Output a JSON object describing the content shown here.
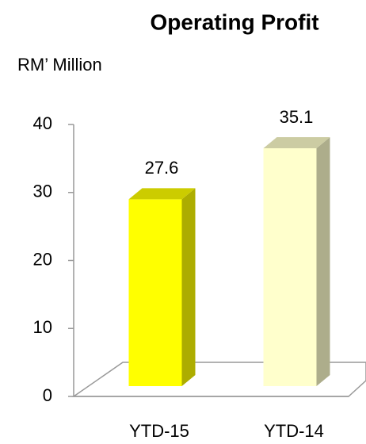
{
  "chart_data": {
    "type": "bar3d",
    "title": "Operating Profit",
    "y_label": "RM’ Million",
    "categories": [
      "YTD-15",
      "YTD-14"
    ],
    "values": [
      27.6,
      35.1
    ],
    "colors": [
      "#ffff00",
      "#ffffcc"
    ],
    "ylim": [
      0,
      40
    ],
    "yticks": [
      0,
      10,
      20,
      30,
      40
    ]
  }
}
